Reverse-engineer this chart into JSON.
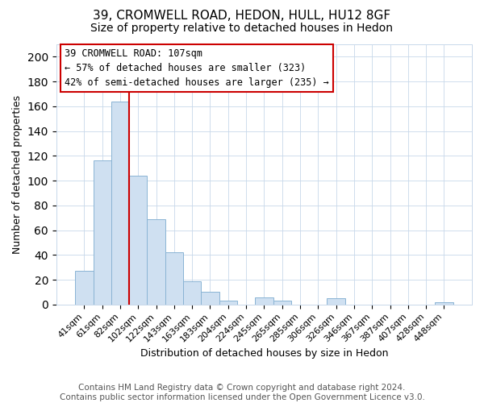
{
  "title1": "39, CROMWELL ROAD, HEDON, HULL, HU12 8GF",
  "title2": "Size of property relative to detached houses in Hedon",
  "xlabel": "Distribution of detached houses by size in Hedon",
  "ylabel": "Number of detached properties",
  "bar_labels": [
    "41sqm",
    "61sqm",
    "82sqm",
    "102sqm",
    "122sqm",
    "143sqm",
    "163sqm",
    "183sqm",
    "204sqm",
    "224sqm",
    "245sqm",
    "265sqm",
    "285sqm",
    "306sqm",
    "326sqm",
    "346sqm",
    "367sqm",
    "387sqm",
    "407sqm",
    "428sqm",
    "448sqm"
  ],
  "bar_values": [
    27,
    116,
    164,
    104,
    69,
    42,
    19,
    10,
    3,
    0,
    6,
    3,
    0,
    0,
    5,
    0,
    0,
    0,
    0,
    0,
    2
  ],
  "bar_color": "#cfe0f1",
  "bar_edge_color": "#8ab4d4",
  "property_line_label": "39 CROMWELL ROAD: 107sqm",
  "annotation_line1": "← 57% of detached houses are smaller (323)",
  "annotation_line2": "42% of semi-detached houses are larger (235) →",
  "vline_color": "#cc0000",
  "ylim": [
    0,
    210
  ],
  "yticks": [
    0,
    20,
    40,
    60,
    80,
    100,
    120,
    140,
    160,
    180,
    200
  ],
  "footer1": "Contains HM Land Registry data © Crown copyright and database right 2024.",
  "footer2": "Contains public sector information licensed under the Open Government Licence v3.0.",
  "title_fontsize": 11,
  "subtitle_fontsize": 10,
  "tick_fontsize": 8,
  "footer_fontsize": 7.5,
  "ylabel_fontsize": 9,
  "xlabel_fontsize": 9
}
